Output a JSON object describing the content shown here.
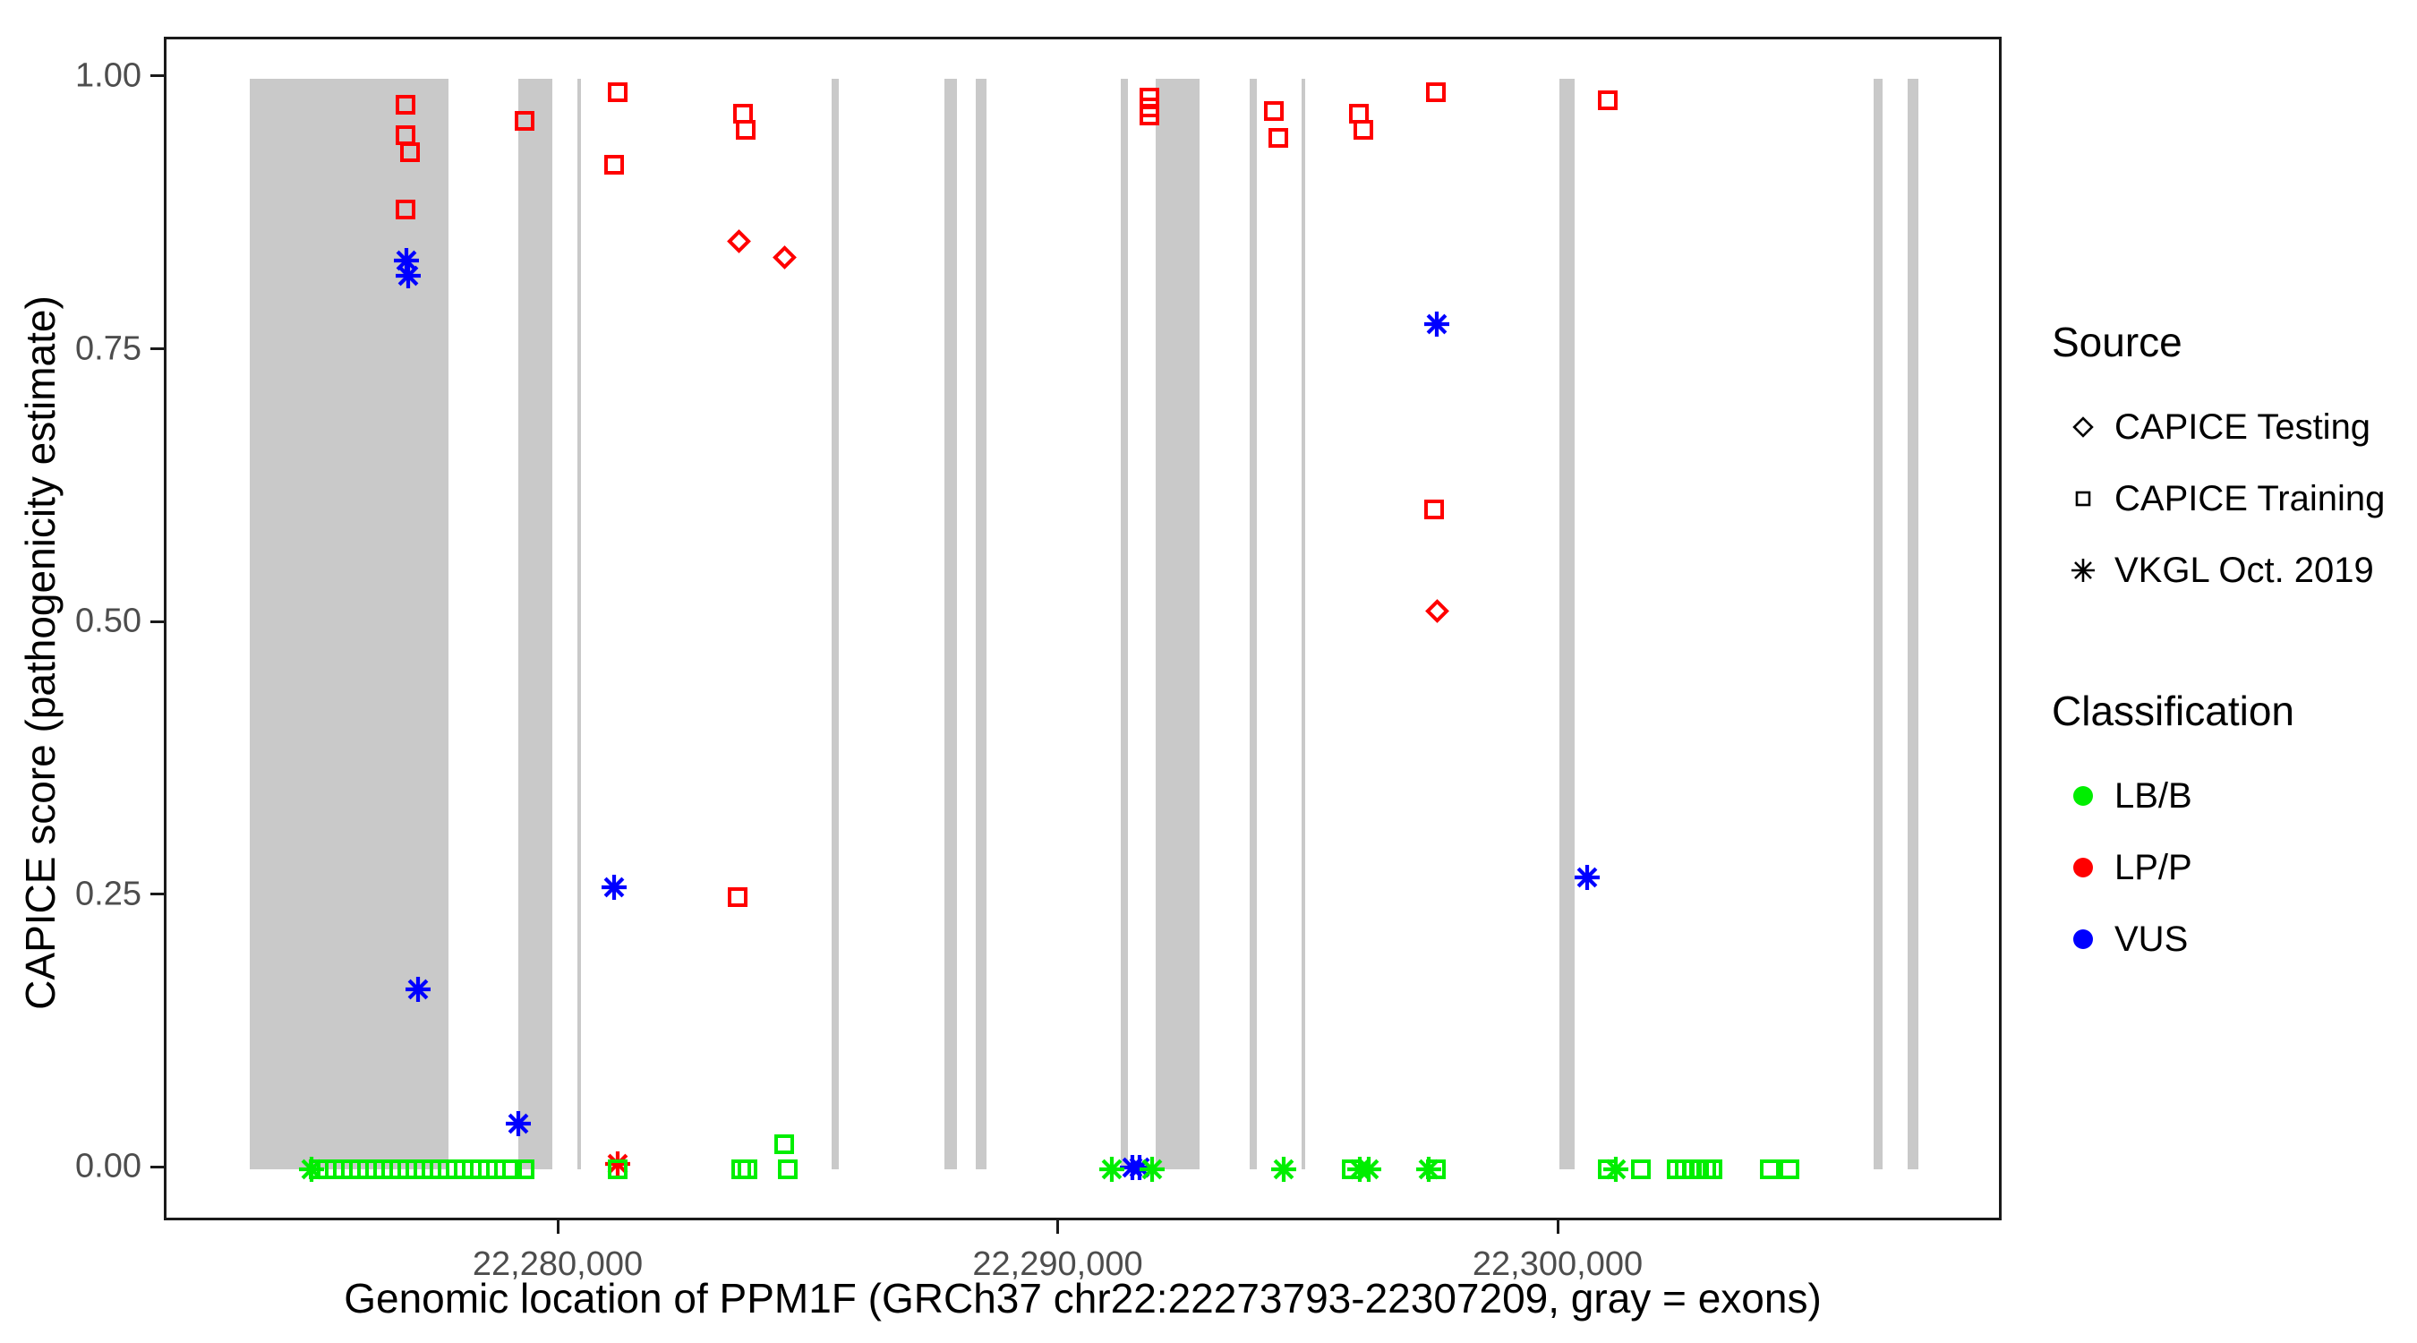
{
  "colors": {
    "LB/B": "#00ee00",
    "LP/P": "#ff0000",
    "VUS": "#0000ff",
    "exon": "#c9c9c9",
    "tick_text": "#4d4d4d",
    "axis_line": "#1a1a1a"
  },
  "legend": {
    "source_title": "Source",
    "source_items": [
      {
        "label": "CAPICE Testing",
        "shape": "diamond"
      },
      {
        "label": "CAPICE Training",
        "shape": "square"
      },
      {
        "label": "VKGL Oct. 2019",
        "shape": "asterisk"
      }
    ],
    "classification_title": "Classification",
    "classification_items": [
      {
        "label": "LB/B",
        "color": "#00ee00"
      },
      {
        "label": "LP/P",
        "color": "#ff0000"
      },
      {
        "label": "VUS",
        "color": "#0000ff"
      }
    ]
  },
  "chart_data": {
    "type": "scatter",
    "title": "",
    "xlabel": "Genomic location of PPM1F (GRCh37 chr22:22273793-22307209, gray = exons)",
    "ylabel": "CAPICE score (pathogenicity estimate)",
    "xlim": [
      22272122,
      22308880
    ],
    "ylim": [
      -0.049,
      1.036
    ],
    "grid": false,
    "legend_position": "right",
    "x_ticks": [
      {
        "value": 22280000,
        "label": "22,280,000"
      },
      {
        "value": 22290000,
        "label": "22,290,000"
      },
      {
        "value": 22300000,
        "label": "22,300,000"
      }
    ],
    "y_ticks": [
      {
        "value": 0.0,
        "label": "0.00"
      },
      {
        "value": 0.25,
        "label": "0.25"
      },
      {
        "value": 0.5,
        "label": "0.50"
      },
      {
        "value": 0.75,
        "label": "0.75"
      },
      {
        "value": 1.0,
        "label": "1.00"
      }
    ],
    "exons_note": "gray vertical bands = exons, spanning score 0 to 1",
    "exons": [
      [
        22273793,
        22277760
      ],
      [
        22279165,
        22279846
      ],
      [
        22280348,
        22280419
      ],
      [
        22285419,
        22285562
      ],
      [
        22287677,
        22287928
      ],
      [
        22288304,
        22288519
      ],
      [
        22291207,
        22291350
      ],
      [
        22291906,
        22292784
      ],
      [
        22293787,
        22293930
      ],
      [
        22294826,
        22294898
      ],
      [
        22299986,
        22300291
      ],
      [
        22306258,
        22306437
      ],
      [
        22306939,
        22307154
      ]
    ],
    "point_format": [
      "genomic_position",
      "capice_score",
      "classification",
      "source"
    ],
    "points": [
      [
        22276900,
        0.976,
        "LP/P",
        "training"
      ],
      [
        22276900,
        0.948,
        "LP/P",
        "training"
      ],
      [
        22276990,
        0.933,
        "LP/P",
        "training"
      ],
      [
        22276900,
        0.88,
        "LP/P",
        "training"
      ],
      [
        22279290,
        0.961,
        "LP/P",
        "training"
      ],
      [
        22281150,
        0.988,
        "LP/P",
        "training"
      ],
      [
        22281080,
        0.921,
        "LP/P",
        "training"
      ],
      [
        22283645,
        0.968,
        "LP/P",
        "training"
      ],
      [
        22283700,
        0.953,
        "LP/P",
        "training"
      ],
      [
        22283540,
        0.25,
        "LP/P",
        "training"
      ],
      [
        22291780,
        0.983,
        "LP/P",
        "training"
      ],
      [
        22291780,
        0.974,
        "LP/P",
        "training"
      ],
      [
        22291780,
        0.966,
        "LP/P",
        "training"
      ],
      [
        22294270,
        0.97,
        "LP/P",
        "training"
      ],
      [
        22294360,
        0.946,
        "LP/P",
        "training"
      ],
      [
        22295970,
        0.968,
        "LP/P",
        "training"
      ],
      [
        22296060,
        0.953,
        "LP/P",
        "training"
      ],
      [
        22297510,
        0.988,
        "LP/P",
        "training"
      ],
      [
        22297470,
        0.605,
        "LP/P",
        "training"
      ],
      [
        22300950,
        0.98,
        "LP/P",
        "training"
      ],
      [
        22283570,
        0.851,
        "LP/P",
        "testing"
      ],
      [
        22284490,
        0.836,
        "LP/P",
        "testing"
      ],
      [
        22297530,
        0.512,
        "LP/P",
        "testing"
      ],
      [
        22281150,
        0.005,
        "LP/P",
        "vkgl"
      ],
      [
        22276925,
        0.833,
        "VUS",
        "vkgl"
      ],
      [
        22276960,
        0.819,
        "VUS",
        "vkgl"
      ],
      [
        22277155,
        0.165,
        "VUS",
        "vkgl"
      ],
      [
        22279165,
        0.042,
        "VUS",
        "vkgl"
      ],
      [
        22281080,
        0.259,
        "VUS",
        "vkgl"
      ],
      [
        22291440,
        0.002,
        "VUS",
        "vkgl"
      ],
      [
        22291580,
        0.002,
        "VUS",
        "vkgl"
      ],
      [
        22297530,
        0.775,
        "VUS",
        "vkgl"
      ],
      [
        22300540,
        0.268,
        "VUS",
        "vkgl"
      ],
      [
        22275025,
        0.0,
        "LB/B",
        "vkgl"
      ],
      [
        22291030,
        0.0,
        "LB/B",
        "vkgl"
      ],
      [
        22291835,
        0.0,
        "LB/B",
        "vkgl"
      ],
      [
        22294470,
        0.0,
        "LB/B",
        "vkgl"
      ],
      [
        22295990,
        0.0,
        "LB/B",
        "vkgl"
      ],
      [
        22296170,
        0.0,
        "LB/B",
        "vkgl"
      ],
      [
        22297370,
        0.0,
        "LB/B",
        "vkgl"
      ],
      [
        22301110,
        0.0,
        "LB/B",
        "vkgl"
      ],
      [
        22275170,
        0.0,
        "LB/B",
        "training"
      ],
      [
        22275330,
        0.0,
        "LB/B",
        "training"
      ],
      [
        22275490,
        0.0,
        "LB/B",
        "training"
      ],
      [
        22275650,
        0.0,
        "LB/B",
        "training"
      ],
      [
        22275815,
        0.0,
        "LB/B",
        "training"
      ],
      [
        22275975,
        0.0,
        "LB/B",
        "training"
      ],
      [
        22276135,
        0.0,
        "LB/B",
        "training"
      ],
      [
        22276295,
        0.0,
        "LB/B",
        "training"
      ],
      [
        22276455,
        0.0,
        "LB/B",
        "training"
      ],
      [
        22276620,
        0.0,
        "LB/B",
        "training"
      ],
      [
        22276780,
        0.0,
        "LB/B",
        "training"
      ],
      [
        22276940,
        0.0,
        "LB/B",
        "training"
      ],
      [
        22277100,
        0.0,
        "LB/B",
        "training"
      ],
      [
        22277260,
        0.0,
        "LB/B",
        "training"
      ],
      [
        22277420,
        0.0,
        "LB/B",
        "training"
      ],
      [
        22277580,
        0.0,
        "LB/B",
        "training"
      ],
      [
        22277745,
        0.0,
        "LB/B",
        "training"
      ],
      [
        22277905,
        0.0,
        "LB/B",
        "training"
      ],
      [
        22278065,
        0.0,
        "LB/B",
        "training"
      ],
      [
        22278225,
        0.0,
        "LB/B",
        "training"
      ],
      [
        22278385,
        0.0,
        "LB/B",
        "training"
      ],
      [
        22278545,
        0.0,
        "LB/B",
        "training"
      ],
      [
        22278705,
        0.0,
        "LB/B",
        "training"
      ],
      [
        22279040,
        0.0,
        "LB/B",
        "training"
      ],
      [
        22279290,
        0.0,
        "LB/B",
        "training"
      ],
      [
        22281150,
        0.0,
        "LB/B",
        "training"
      ],
      [
        22283610,
        0.0,
        "LB/B",
        "training"
      ],
      [
        22283735,
        0.0,
        "LB/B",
        "training"
      ],
      [
        22284470,
        0.023,
        "LB/B",
        "training"
      ],
      [
        22284540,
        0.0,
        "LB/B",
        "training"
      ],
      [
        22295830,
        0.0,
        "LB/B",
        "training"
      ],
      [
        22297510,
        0.0,
        "LB/B",
        "training"
      ],
      [
        22300950,
        0.0,
        "LB/B",
        "training"
      ],
      [
        22301610,
        0.0,
        "LB/B",
        "training"
      ],
      [
        22302320,
        0.0,
        "LB/B",
        "training"
      ],
      [
        22302480,
        0.0,
        "LB/B",
        "training"
      ],
      [
        22302625,
        0.0,
        "LB/B",
        "training"
      ],
      [
        22302770,
        0.0,
        "LB/B",
        "training"
      ],
      [
        22302910,
        0.0,
        "LB/B",
        "training"
      ],
      [
        22303050,
        0.0,
        "LB/B",
        "training"
      ],
      [
        22304180,
        0.0,
        "LB/B",
        "training"
      ],
      [
        22304575,
        0.0,
        "LB/B",
        "training"
      ]
    ]
  }
}
